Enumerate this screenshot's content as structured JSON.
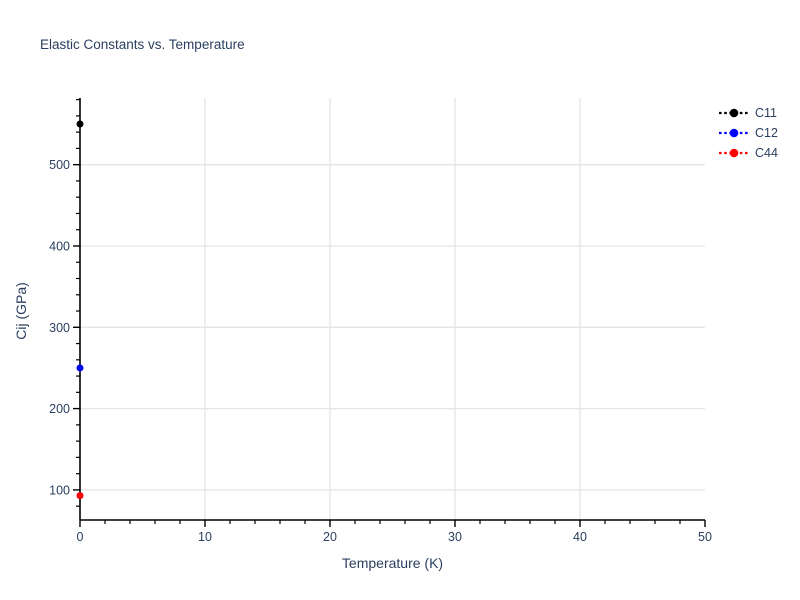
{
  "colors": {
    "text": "#2a3f5f",
    "grid": "#e5e5e5",
    "axis": "#000000",
    "background": "#ffffff"
  },
  "chart_data": {
    "type": "scatter",
    "title": "Elastic Constants vs. Temperature",
    "xlabel": "Temperature (K)",
    "ylabel": "Cij (GPa)",
    "xlim": [
      0,
      50
    ],
    "ylim": [
      63,
      582
    ],
    "x_major_ticks": [
      0,
      10,
      20,
      30,
      40,
      50
    ],
    "y_major_ticks": [
      100,
      200,
      300,
      400,
      500
    ],
    "x_minor_step": 2,
    "y_minor_step": 20,
    "grid": true,
    "legend_position": "top-right-outside",
    "series": [
      {
        "name": "C11",
        "color": "#000000",
        "line_dash": "dot",
        "marker": "circle",
        "x": [
          0
        ],
        "y": [
          550
        ]
      },
      {
        "name": "C12",
        "color": "#0000ff",
        "line_dash": "dot",
        "marker": "circle",
        "x": [
          0
        ],
        "y": [
          250
        ]
      },
      {
        "name": "C44",
        "color": "#ff0000",
        "line_dash": "dot",
        "marker": "circle",
        "x": [
          0
        ],
        "y": [
          93
        ]
      }
    ]
  }
}
